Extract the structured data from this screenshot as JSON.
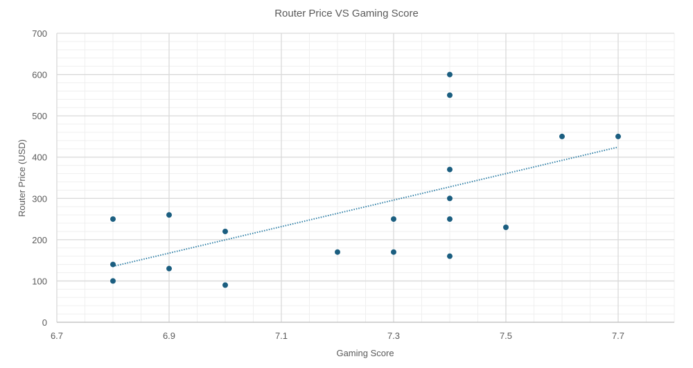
{
  "chart_data": {
    "type": "scatter",
    "title": "Router Price VS Gaming Score",
    "xlabel": "Gaming Score",
    "ylabel": "Router Price (USD)",
    "xlim": [
      6.7,
      7.8
    ],
    "ylim": [
      0,
      700
    ],
    "x_ticks": [
      "6.7",
      "6.9",
      "7.1",
      "7.3",
      "7.5",
      "7.7"
    ],
    "y_ticks": [
      "0",
      "100",
      "200",
      "300",
      "400",
      "500",
      "600",
      "700"
    ],
    "grid": true,
    "legend": "none",
    "trendline": "linear, dotted",
    "colors": {
      "points": "#1b5e80",
      "trendline": "#2f7fa6",
      "grid_major": "#d9d9d9",
      "grid_minor": "#efefef"
    },
    "points": [
      {
        "x": 6.8,
        "y": 250
      },
      {
        "x": 6.8,
        "y": 140
      },
      {
        "x": 6.8,
        "y": 100
      },
      {
        "x": 6.9,
        "y": 260
      },
      {
        "x": 6.9,
        "y": 130
      },
      {
        "x": 7.0,
        "y": 220
      },
      {
        "x": 7.0,
        "y": 90
      },
      {
        "x": 7.2,
        "y": 170
      },
      {
        "x": 7.3,
        "y": 250
      },
      {
        "x": 7.3,
        "y": 170
      },
      {
        "x": 7.4,
        "y": 600
      },
      {
        "x": 7.4,
        "y": 550
      },
      {
        "x": 7.4,
        "y": 370
      },
      {
        "x": 7.4,
        "y": 300
      },
      {
        "x": 7.4,
        "y": 250
      },
      {
        "x": 7.4,
        "y": 160
      },
      {
        "x": 7.5,
        "y": 230
      },
      {
        "x": 7.6,
        "y": 450
      },
      {
        "x": 7.7,
        "y": 450
      }
    ]
  }
}
